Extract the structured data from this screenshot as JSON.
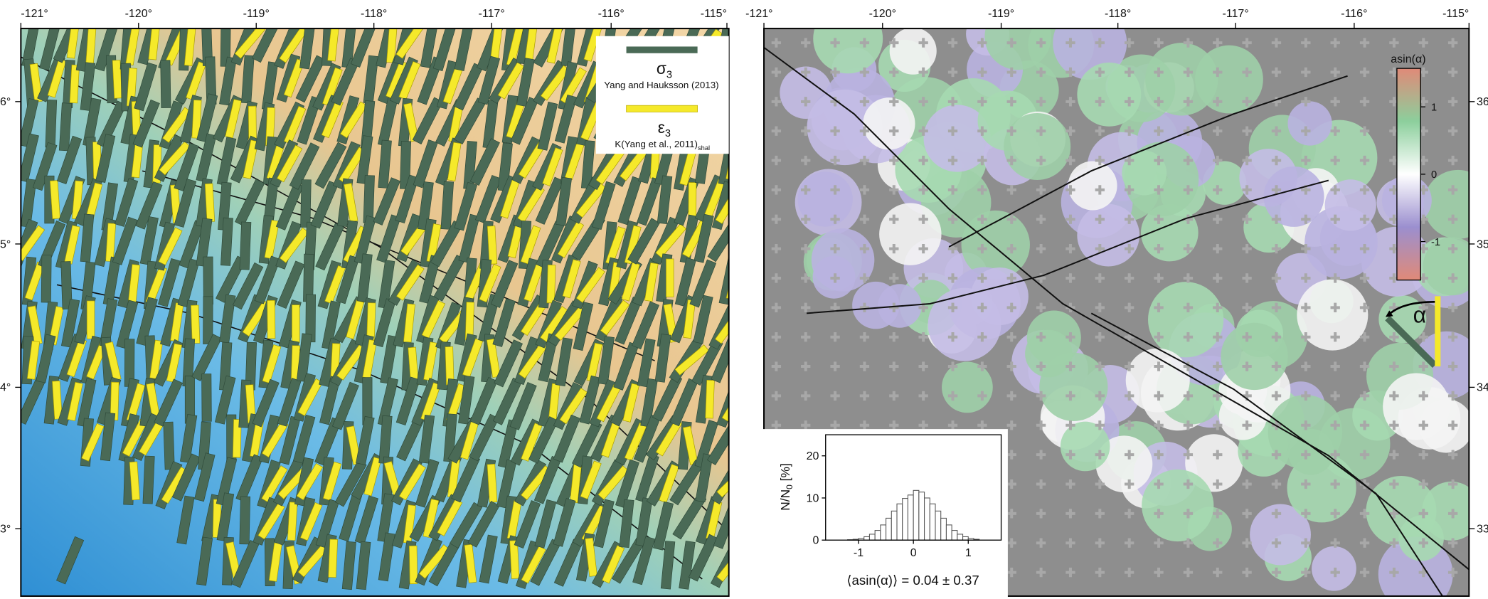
{
  "left_map": {
    "lon_labels": [
      "-121°",
      "-120°",
      "-119°",
      "-118°",
      "-117°",
      "-116°",
      "-115°"
    ],
    "lat_labels": [
      "6°",
      "5°",
      "4°",
      "3°"
    ],
    "legend": {
      "sigma_symbol": "σ",
      "sigma_subscript": "3",
      "sigma_source": "Yang and Hauksson (2013)",
      "epsilon_symbol": "ε",
      "epsilon_subscript": "3",
      "epsilon_source": "K(Yang et al., 2011)",
      "epsilon_source_subscript": "shal"
    }
  },
  "right_map": {
    "lon_labels": [
      "-121°",
      "-120°",
      "-119°",
      "-118°",
      "-117°",
      "-116°",
      "-115°"
    ],
    "lat_labels": [
      "36",
      "35",
      "34",
      "33"
    ],
    "alpha_symbol": "α",
    "colorbar": {
      "label": "asin(α)",
      "lim": [
        -1.5708,
        1.5708
      ],
      "ticks": [
        -1,
        0,
        1
      ]
    }
  },
  "chart_data": {
    "type": "histogram",
    "bins": [
      -1.2,
      -1.1,
      -1.0,
      -0.9,
      -0.8,
      -0.7,
      -0.6,
      -0.5,
      -0.4,
      -0.3,
      -0.2,
      -0.1,
      0.0,
      0.1,
      0.2,
      0.3,
      0.4,
      0.5,
      0.6,
      0.7,
      0.8,
      0.9,
      1.0,
      1.1,
      1.2
    ],
    "values": [
      0.1,
      0.2,
      0.4,
      0.8,
      1.4,
      2.3,
      3.6,
      5.2,
      6.9,
      8.6,
      9.9,
      10.7,
      11.8,
      11.4,
      10.0,
      8.6,
      6.9,
      5.2,
      3.6,
      2.3,
      1.4,
      0.8,
      0.4,
      0.2
    ],
    "xlim": [
      -1.6,
      1.6
    ],
    "ylim": [
      0,
      25
    ],
    "xticks": [
      -1,
      0,
      1
    ],
    "yticks": [
      0,
      10,
      20
    ],
    "ylabel": "N/N",
    "ylabel_subscript": "0",
    "ylabel_unit": "[%]",
    "annotation": "⟨asin(α)⟩ = 0.04 ± 0.37"
  }
}
